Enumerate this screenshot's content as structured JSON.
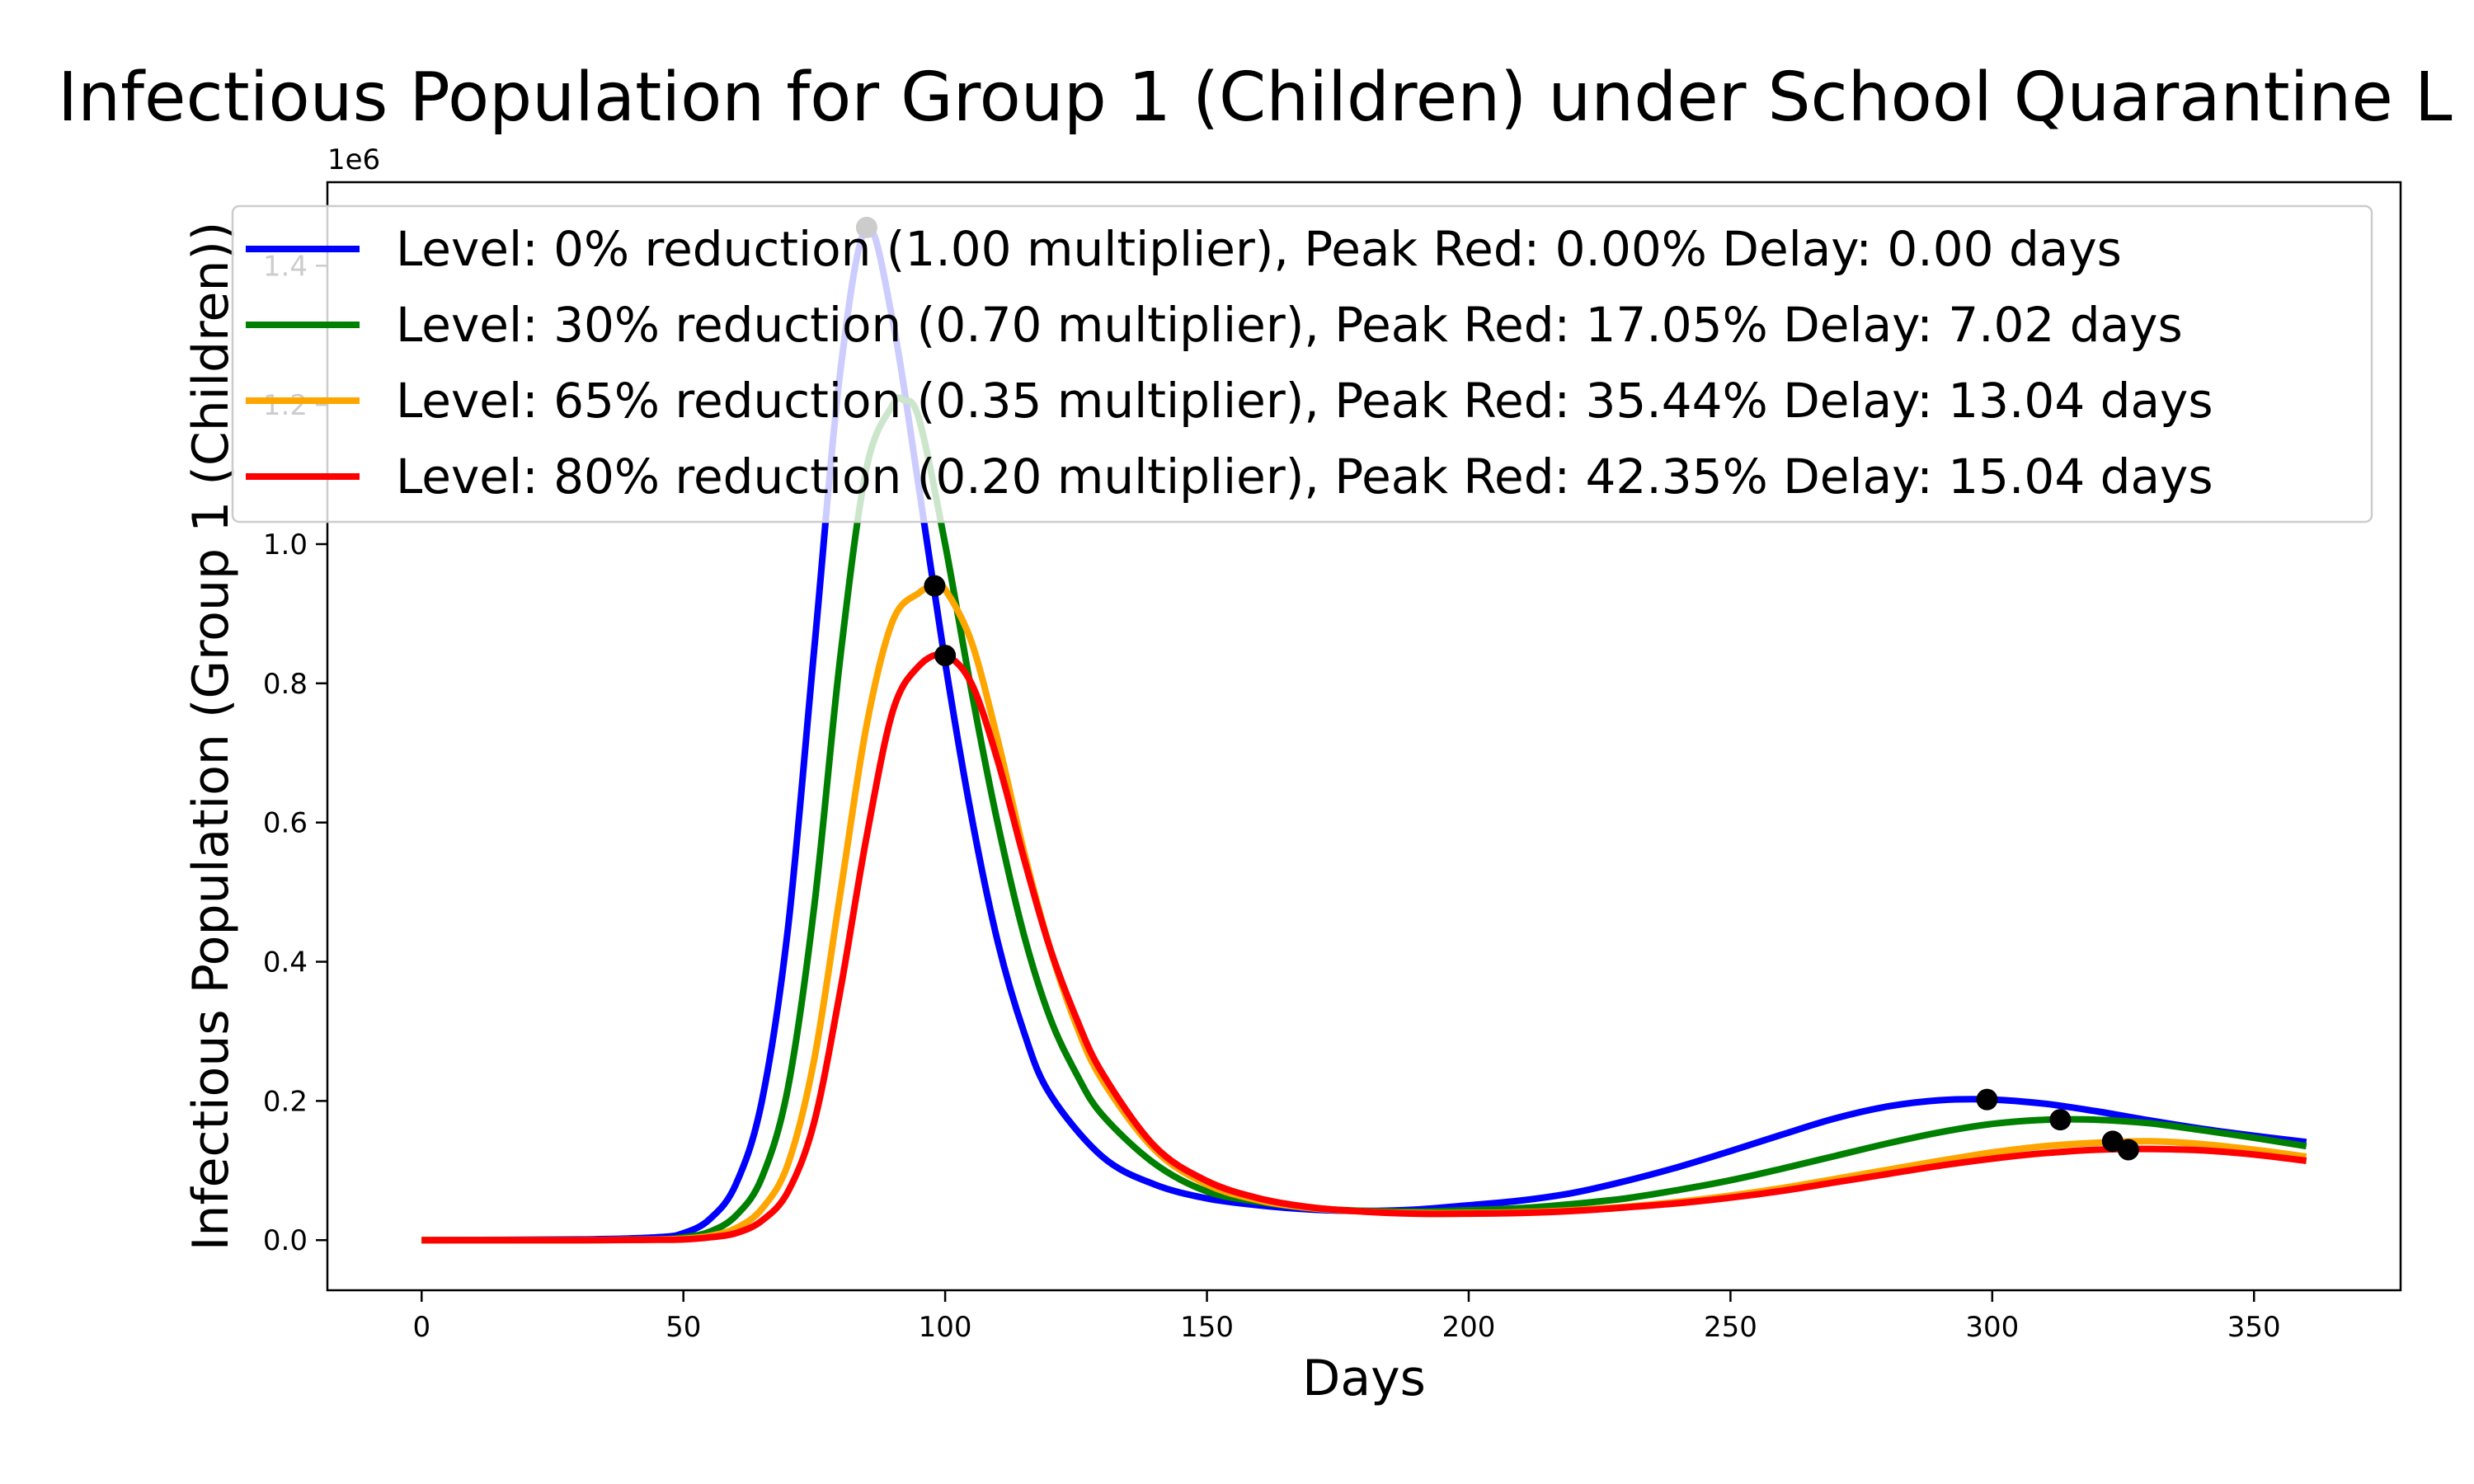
{
  "chart_data": {
    "type": "line",
    "title": "Infectious Population for Group 1 (Children) under School Quarantine L",
    "xlabel": "Days",
    "ylabel": "Infectious Population (Group 1 (Children))",
    "y_offset_label": "1e6",
    "xlim": [
      -18,
      378
    ],
    "ylim": [
      -0.072,
      1.52
    ],
    "x_ticks": [
      0,
      50,
      100,
      150,
      200,
      250,
      300,
      350
    ],
    "y_ticks": [
      0.0,
      0.2,
      0.4,
      0.6,
      0.8,
      1.0,
      1.2,
      1.4
    ],
    "x_tick_labels": [
      "0",
      "50",
      "100",
      "150",
      "200",
      "250",
      "300",
      "350"
    ],
    "y_tick_labels": [
      "0.0",
      "0.2",
      "0.4",
      "0.6",
      "0.8",
      "1.0",
      "1.2",
      "1.4"
    ],
    "grid": false,
    "legend_position": "top",
    "series": [
      {
        "name": "Level: 0% reduction (1.00 multiplier), Peak Red: 0.00% Delay: 0.00 days",
        "color": "#0000ff",
        "x": [
          0,
          30,
          45,
          50,
          55,
          60,
          65,
          70,
          75,
          80,
          85,
          90,
          95,
          100,
          105,
          110,
          115,
          120,
          130,
          140,
          150,
          160,
          170,
          180,
          190,
          200,
          210,
          220,
          230,
          240,
          250,
          260,
          270,
          280,
          290,
          300,
          310,
          320,
          330,
          340,
          350,
          360
        ],
        "y": [
          0.0,
          0.001,
          0.004,
          0.01,
          0.03,
          0.08,
          0.2,
          0.45,
          0.85,
          1.25,
          1.455,
          1.32,
          1.08,
          0.83,
          0.61,
          0.43,
          0.3,
          0.21,
          0.12,
          0.08,
          0.06,
          0.05,
          0.044,
          0.042,
          0.044,
          0.05,
          0.057,
          0.068,
          0.085,
          0.105,
          0.128,
          0.152,
          0.175,
          0.192,
          0.201,
          0.202,
          0.196,
          0.185,
          0.172,
          0.16,
          0.15,
          0.141
        ]
      },
      {
        "name": "Level: 30% reduction (0.70 multiplier), Peak Red: 17.05% Delay: 7.02 days",
        "color": "#008000",
        "x": [
          0,
          30,
          45,
          50,
          55,
          60,
          65,
          70,
          75,
          80,
          85,
          90,
          92,
          95,
          100,
          105,
          110,
          115,
          120,
          125,
          130,
          140,
          150,
          160,
          170,
          180,
          190,
          200,
          210,
          220,
          230,
          240,
          250,
          260,
          270,
          280,
          290,
          300,
          310,
          320,
          330,
          340,
          350,
          360
        ],
        "y": [
          0.0,
          0.0,
          0.001,
          0.004,
          0.012,
          0.035,
          0.09,
          0.22,
          0.48,
          0.84,
          1.11,
          1.2,
          1.207,
          1.18,
          1.0,
          0.79,
          0.6,
          0.44,
          0.32,
          0.24,
          0.18,
          0.11,
          0.07,
          0.055,
          0.046,
          0.042,
          0.041,
          0.043,
          0.046,
          0.052,
          0.06,
          0.072,
          0.086,
          0.103,
          0.121,
          0.139,
          0.155,
          0.167,
          0.173,
          0.173,
          0.168,
          0.158,
          0.147,
          0.135
        ]
      },
      {
        "name": "Level: 65% reduction (0.35 multiplier), Peak Red: 35.44% Delay: 13.04 days",
        "color": "#ffa500",
        "x": [
          0,
          30,
          45,
          50,
          55,
          60,
          65,
          70,
          75,
          80,
          85,
          90,
          95,
          98,
          100,
          105,
          110,
          115,
          120,
          125,
          130,
          140,
          150,
          160,
          170,
          180,
          190,
          200,
          210,
          220,
          230,
          240,
          250,
          260,
          270,
          280,
          290,
          300,
          310,
          320,
          330,
          340,
          350,
          360
        ],
        "y": [
          0.0,
          0.0,
          0.001,
          0.002,
          0.006,
          0.017,
          0.045,
          0.11,
          0.26,
          0.5,
          0.74,
          0.89,
          0.93,
          0.94,
          0.935,
          0.86,
          0.72,
          0.56,
          0.42,
          0.31,
          0.23,
          0.13,
          0.08,
          0.057,
          0.046,
          0.041,
          0.039,
          0.039,
          0.04,
          0.043,
          0.048,
          0.055,
          0.064,
          0.075,
          0.088,
          0.101,
          0.114,
          0.126,
          0.135,
          0.14,
          0.142,
          0.138,
          0.13,
          0.12
        ]
      },
      {
        "name": "Level: 80% reduction (0.20 multiplier), Peak Red: 42.35% Delay: 15.04 days",
        "color": "#ff0000",
        "x": [
          0,
          30,
          45,
          50,
          55,
          60,
          65,
          70,
          75,
          80,
          85,
          90,
          95,
          100,
          105,
          110,
          115,
          120,
          125,
          130,
          140,
          150,
          160,
          170,
          180,
          190,
          200,
          210,
          220,
          230,
          240,
          250,
          260,
          270,
          280,
          290,
          300,
          310,
          320,
          330,
          340,
          350,
          360
        ],
        "y": [
          0.0,
          0.0,
          0.0005,
          0.001,
          0.004,
          0.01,
          0.028,
          0.07,
          0.17,
          0.36,
          0.58,
          0.76,
          0.825,
          0.84,
          0.8,
          0.69,
          0.55,
          0.42,
          0.32,
          0.24,
          0.135,
          0.085,
          0.06,
          0.047,
          0.041,
          0.038,
          0.038,
          0.039,
          0.042,
          0.047,
          0.053,
          0.061,
          0.071,
          0.083,
          0.095,
          0.107,
          0.117,
          0.125,
          0.13,
          0.131,
          0.129,
          0.123,
          0.114
        ]
      }
    ],
    "peak_markers": [
      {
        "x": 85,
        "y": 1.455
      },
      {
        "x": 98,
        "y": 0.94
      },
      {
        "x": 100,
        "y": 0.84
      },
      {
        "x": 299,
        "y": 0.202
      },
      {
        "x": 313,
        "y": 0.173
      },
      {
        "x": 323,
        "y": 0.142
      },
      {
        "x": 326,
        "y": 0.13
      }
    ]
  }
}
